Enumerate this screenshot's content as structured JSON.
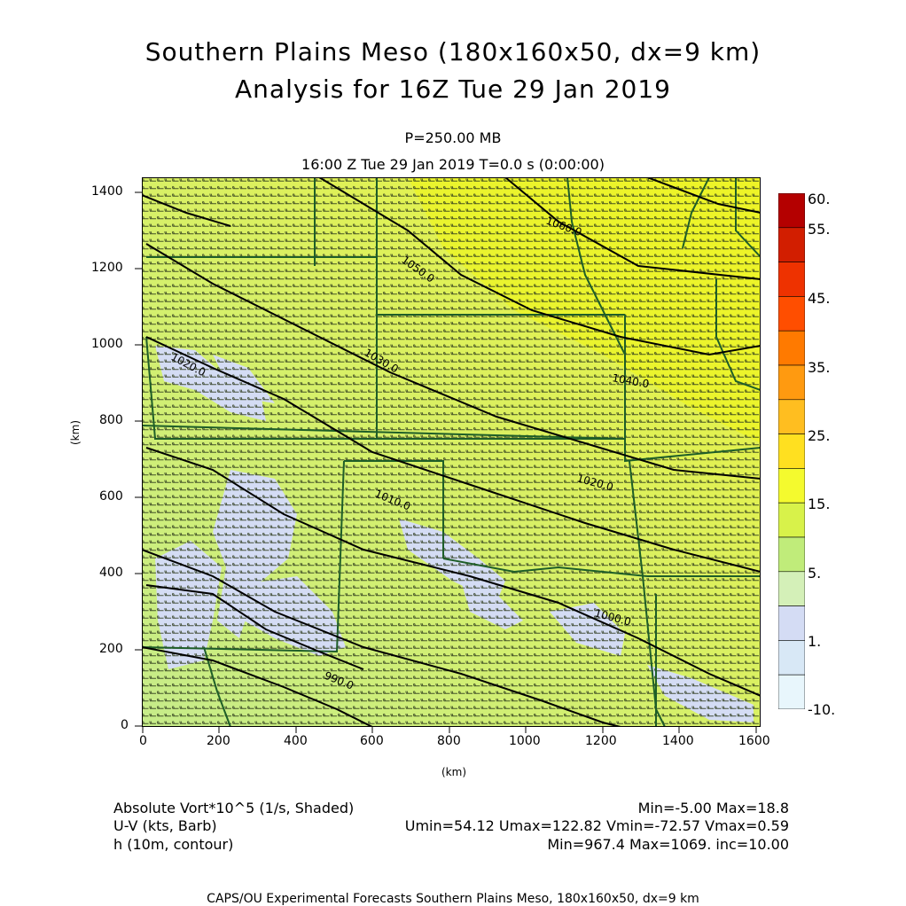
{
  "title_line1": "Southern Plains Meso (180x160x50, dx=9 km)",
  "title_line2": "Analysis for 16Z Tue 29 Jan 2019",
  "level_label": "P=250.00 MB",
  "time_label": "16:00 Z Tue 29 Jan 2019    T=0.0 s (0:00:00)",
  "axes": {
    "x_label": "(km)",
    "y_label": "(km)",
    "x_ticks": [
      "0",
      "200",
      "400",
      "600",
      "800",
      "1000",
      "1200",
      "1400",
      "1600"
    ],
    "y_ticks": [
      "0",
      "200",
      "400",
      "600",
      "800",
      "1000",
      "1200",
      "1400"
    ],
    "x_range": [
      0,
      1611
    ],
    "y_range": [
      0,
      1431
    ]
  },
  "contour_labels": [
    {
      "text": "1060.0",
      "x": 1090,
      "y": 1360
    },
    {
      "text": "1050.0",
      "x": 700,
      "y": 1230
    },
    {
      "text": "1040.0",
      "x": 1250,
      "y": 910
    },
    {
      "text": "1030.0",
      "x": 620,
      "y": 970
    },
    {
      "text": "1020.0",
      "x": 110,
      "y": 960
    },
    {
      "text": "1020.0",
      "x": 1170,
      "y": 640
    },
    {
      "text": "1010.0",
      "x": 650,
      "y": 590
    },
    {
      "text": "1000.0",
      "x": 1220,
      "y": 300
    },
    {
      "text": "990.0",
      "x": 530,
      "y": 120
    }
  ],
  "colorbar": {
    "labels": [
      "60.",
      "55.",
      "45.",
      "35.",
      "25.",
      "15.",
      "5.",
      "1.",
      "-10."
    ],
    "colors": [
      "#b40000",
      "#d21e00",
      "#ee3200",
      "#ff4e00",
      "#ff7a00",
      "#ff9a10",
      "#ffbe20",
      "#ffe020",
      "#f4fa2e",
      "#d8f24a",
      "#c0ec7a",
      "#d4f0b8",
      "#d4dcf4",
      "#d8e8f6",
      "#e8f6fc"
    ]
  },
  "legend": {
    "field1": "Absolute Vort*10^5 (1/s, Shaded)",
    "field1_stats": "Min=-5.00 Max=18.8",
    "field2": "U-V (kts, Barb)",
    "field2_stats": "Umin=54.12 Umax=122.82 Vmin=-72.57 Vmax=0.59",
    "field3": "h (10m, contour)",
    "field3_stats": "Min=967.4 Max=1069. inc=10.00"
  },
  "footer": "CAPS/OU Experimental Forecasts  Southern Plains Meso, 180x160x50, dx=9 km"
}
